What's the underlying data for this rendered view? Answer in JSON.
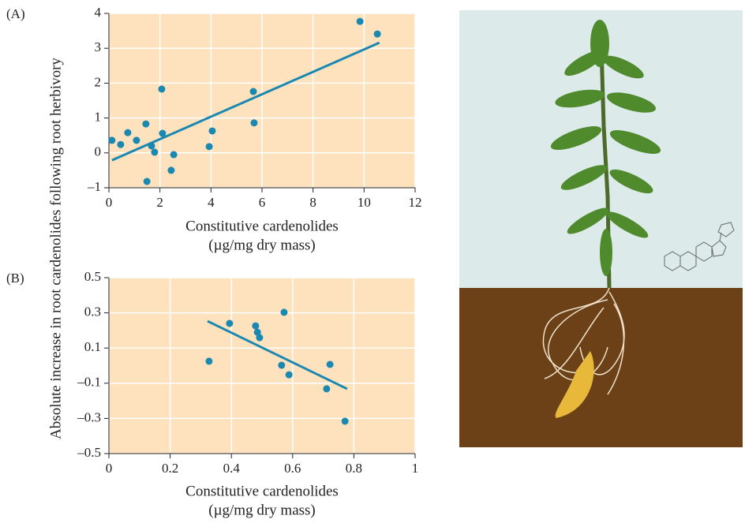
{
  "chart_data": [
    {
      "type": "scatter",
      "panel_label": "(A)",
      "ylabel": "Absolute increase in root cardenolides following root herbivory",
      "xlabel": "Constitutive cardenolides",
      "xlabel_unit": "(µg/mg dry mass)",
      "x": [
        0.12,
        0.46,
        0.74,
        1.08,
        1.45,
        1.49,
        1.67,
        1.79,
        2.07,
        2.1,
        2.44,
        2.54,
        3.93,
        4.05,
        5.66,
        5.69,
        9.84,
        10.52
      ],
      "values": [
        0.36,
        0.24,
        0.58,
        0.36,
        0.83,
        -0.82,
        0.2,
        0.02,
        1.83,
        0.56,
        -0.5,
        -0.05,
        0.18,
        0.63,
        1.76,
        0.86,
        3.77,
        3.41
      ],
      "trendline": {
        "x": [
          0.12,
          10.6
        ],
        "y": [
          -0.21,
          3.16
        ]
      },
      "color": "#1a88b0",
      "background": "#fde2bd",
      "grid": true,
      "xlim": [
        0,
        12
      ],
      "xticks": [
        0,
        2,
        4,
        6,
        8,
        10,
        12
      ],
      "ylim": [
        -1,
        4
      ],
      "yticks": [
        {
          "value": -1,
          "label": "–1"
        },
        0,
        1,
        2,
        3,
        4
      ]
    },
    {
      "type": "scatter",
      "panel_label": "(B)",
      "xlabel": "Constitutive cardenolides",
      "xlabel_unit": "(µg/mg dry mass)",
      "x": [
        0.327,
        0.394,
        0.479,
        0.485,
        0.492,
        0.564,
        0.572,
        0.588,
        0.711,
        0.722,
        0.771
      ],
      "values": [
        0.025,
        0.24,
        0.226,
        0.19,
        0.159,
        0.002,
        0.303,
        -0.052,
        -0.132,
        0.007,
        -0.316
      ],
      "trendline": {
        "x": [
          0.322,
          0.778
        ],
        "y": [
          0.253,
          -0.132
        ]
      },
      "color": "#1a88b0",
      "background": "#fde2bd",
      "grid": true,
      "xlim": [
        0,
        1
      ],
      "xticks": [
        0,
        0.2,
        0.4,
        0.6,
        0.8,
        1
      ],
      "ylim": [
        -0.5,
        0.5
      ],
      "yticks": [
        {
          "value": -0.5,
          "label": "–0.5"
        },
        {
          "value": -0.3,
          "label": "–0.3"
        },
        {
          "value": -0.1,
          "label": "–0.1"
        },
        0.1,
        0.3,
        0.5
      ]
    }
  ]
}
